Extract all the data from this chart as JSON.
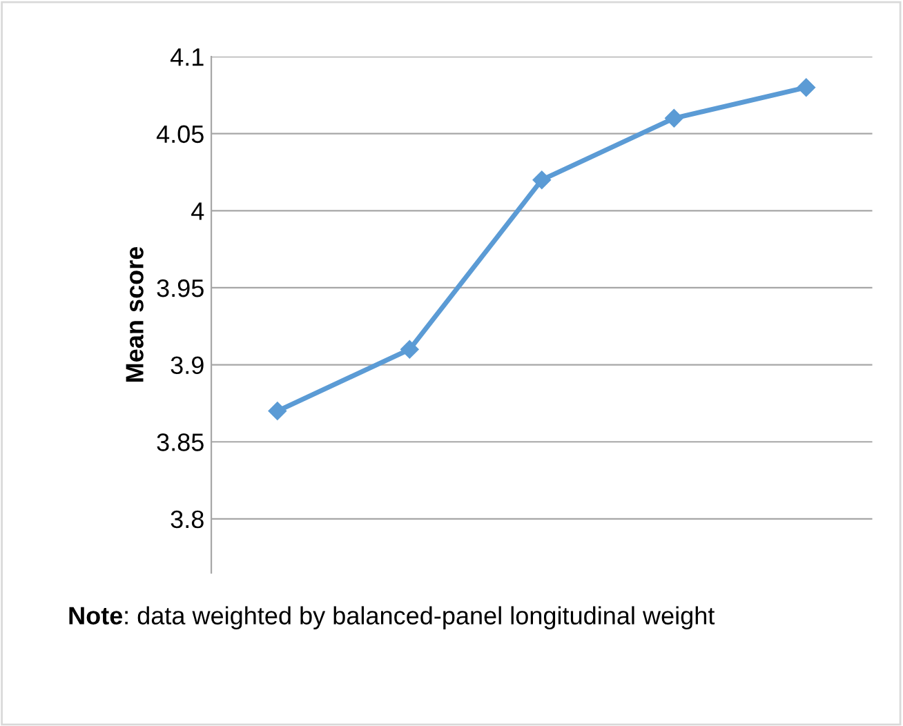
{
  "chart_data": {
    "type": "line",
    "ylabel": "Mean score",
    "categories": [
      null,
      null,
      null,
      null,
      null
    ],
    "series": [
      {
        "color": "#5b9bd5",
        "values": [
          3.87,
          3.91,
          4.02,
          4.06,
          4.08
        ]
      }
    ],
    "ylim": [
      3.765,
      4.1
    ],
    "yticks": [
      3.8,
      3.85,
      3.9,
      3.95,
      4,
      4.05,
      4.1
    ],
    "grid": "y",
    "marker": "diamond",
    "line_style": "solid",
    "legend": false,
    "annotations": [
      "Note: data weighted by balanced-panel longitudinal weight"
    ]
  }
}
